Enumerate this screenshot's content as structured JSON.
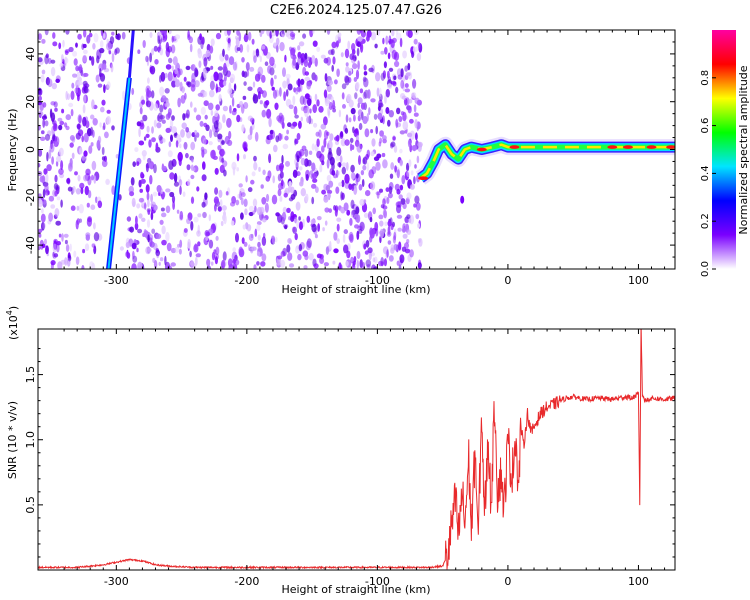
{
  "title": "C2E6.2024.125.07.47.G26",
  "chart_data": [
    {
      "type": "heatmap",
      "xlabel": "Height of straight line (km)",
      "ylabel": "Frequency (Hz)",
      "xlim": [
        -360,
        128
      ],
      "ylim": [
        -50,
        50
      ],
      "xticks": [
        -300,
        -200,
        -100,
        0,
        100
      ],
      "xtick_labels": [
        "-300",
        "-200",
        "-100",
        "0",
        "100"
      ],
      "yticks": [
        -40,
        -20,
        0,
        20,
        40
      ],
      "ytick_labels": [
        "-40",
        "-20",
        "0",
        "20",
        "40"
      ],
      "grid": false,
      "noise_region_x": [
        -360,
        -67
      ],
      "streak": {
        "x_start": -306,
        "y_start": -50,
        "x_end": -290,
        "y_end": 30
      },
      "signal_trace": [
        {
          "x": -67,
          "y": -12
        },
        {
          "x": -62,
          "y": -10
        },
        {
          "x": -57,
          "y": -5
        },
        {
          "x": -53,
          "y": 0
        },
        {
          "x": -48,
          "y": 2
        },
        {
          "x": -43,
          "y": -2
        },
        {
          "x": -38,
          "y": -4
        },
        {
          "x": -33,
          "y": 0
        },
        {
          "x": -28,
          "y": 1
        },
        {
          "x": -20,
          "y": 0
        },
        {
          "x": -12,
          "y": 1
        },
        {
          "x": -5,
          "y": 2
        },
        {
          "x": 0,
          "y": 1
        },
        {
          "x": 20,
          "y": 1
        },
        {
          "x": 50,
          "y": 1
        },
        {
          "x": 80,
          "y": 1
        },
        {
          "x": 100,
          "y": 1
        },
        {
          "x": 128,
          "y": 1
        }
      ],
      "colorbar": {
        "label": "Normalized spectral amplitude",
        "range": [
          0,
          1
        ],
        "ticks": [
          0.0,
          0.2,
          0.4,
          0.6,
          0.8
        ],
        "tick_labels": [
          "0.0",
          "0.2",
          "0.4",
          "0.6",
          "0.8"
        ],
        "colors": [
          "#ffffff",
          "#7a00ff",
          "#0000ff",
          "#00e5ff",
          "#00ff00",
          "#ffff00",
          "#ff0000",
          "#ff00a0"
        ]
      }
    },
    {
      "type": "line",
      "xlabel": "Height of straight line (km)",
      "ylabel": "SNR (10 * v/v)",
      "scale_label": "(x10",
      "scale_exponent": "4",
      "scale_close": ")",
      "xlim": [
        -360,
        128
      ],
      "ylim": [
        0,
        1.85
      ],
      "xticks": [
        -300,
        -200,
        -100,
        0,
        100
      ],
      "xtick_labels": [
        "-300",
        "-200",
        "-100",
        "0",
        "100"
      ],
      "yticks": [
        0.5,
        1.0,
        1.5
      ],
      "ytick_labels": [
        "0.5",
        "1.0",
        "1.5"
      ],
      "grid": false,
      "series": [
        {
          "color": "#e8292b",
          "x": [
            -360,
            -330,
            -310,
            -300,
            -290,
            -280,
            -270,
            -260,
            -240,
            -200,
            -150,
            -100,
            -80,
            -60,
            -50,
            -46,
            -43,
            -40,
            -38,
            -35,
            -33,
            -30,
            -28,
            -25,
            -23,
            -20,
            -18,
            -15,
            -13,
            -10,
            -8,
            -5,
            -3,
            0,
            3,
            6,
            8,
            10,
            12,
            15,
            18,
            20,
            25,
            30,
            35,
            40,
            45,
            50,
            60,
            70,
            80,
            90,
            95,
            100,
            101,
            102,
            103,
            105,
            110,
            120,
            128
          ],
          "y": [
            0.02,
            0.02,
            0.04,
            0.06,
            0.08,
            0.07,
            0.04,
            0.03,
            0.02,
            0.02,
            0.02,
            0.02,
            0.02,
            0.02,
            0.03,
            0.12,
            0.35,
            0.55,
            0.25,
            0.6,
            0.35,
            0.85,
            0.3,
            0.95,
            0.2,
            1.2,
            0.4,
            1.0,
            0.5,
            1.3,
            0.6,
            0.75,
            0.45,
            1.0,
            0.7,
            1.05,
            0.6,
            1.1,
            0.95,
            1.2,
            1.05,
            1.1,
            1.2,
            1.25,
            1.27,
            1.3,
            1.32,
            1.33,
            1.31,
            1.32,
            1.31,
            1.33,
            1.32,
            1.35,
            0.5,
            1.9,
            1.35,
            1.3,
            1.32,
            1.31,
            1.32
          ]
        }
      ]
    }
  ]
}
